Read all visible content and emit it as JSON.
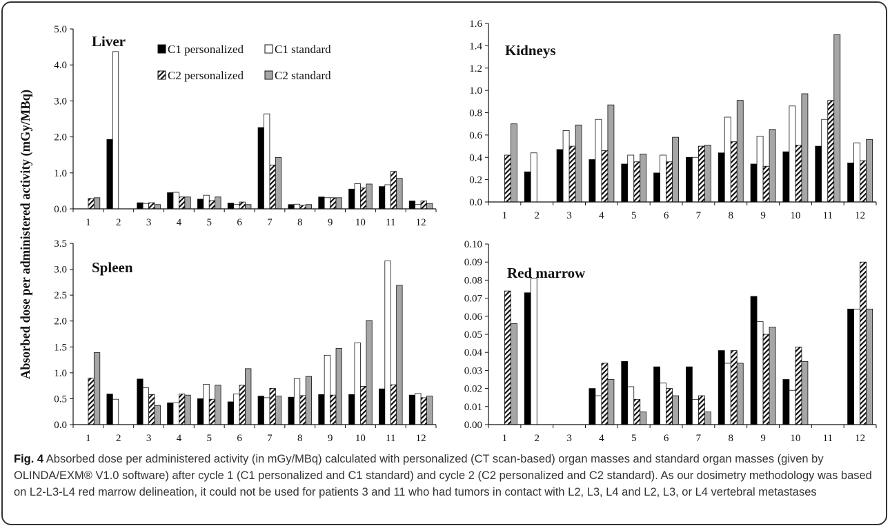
{
  "ylabel": "Absorbed dose per administered activity (mGy/MBq)",
  "legend": [
    {
      "name": "C1 personalized",
      "style": "black"
    },
    {
      "name": "C1 standard",
      "style": "white"
    },
    {
      "name": "C2 personalized",
      "style": "hatch"
    },
    {
      "name": "C2 standard",
      "style": "gray"
    }
  ],
  "colors": {
    "c1p": "#000000",
    "c1s": "#ffffff",
    "c2p_hatch": "#111111",
    "c2s": "#a6a6a6"
  },
  "caption": {
    "fig_label": "Fig. 4",
    "text": "Absorbed dose per administered activity (in mGy/MBq) calculated with personalized (CT scan-based) organ masses and standard organ masses (given by OLINDA/EXM® V1.0 software) after cycle 1 (C1 personalized and C1 standard) and cycle 2 (C2 personalized and C2 standard). As our dosimetry methodology was based on L2-L3-L4 red marrow delineation, it could not be used for patients 3 and 11 who had tumors in contact with L2, L3, L4 and L2, L3, or L4 vertebral metastases"
  },
  "chart_data": [
    {
      "type": "bar",
      "title": "Liver",
      "categories": [
        "1",
        "2",
        "3",
        "4",
        "5",
        "6",
        "7",
        "8",
        "9",
        "10",
        "11",
        "12"
      ],
      "ylim": [
        0,
        5
      ],
      "yticks": [
        "0.0",
        "1.0",
        "2.0",
        "3.0",
        "4.0",
        "5.0"
      ],
      "series": [
        {
          "name": "C1 personalized",
          "values": [
            null,
            1.93,
            0.17,
            0.45,
            0.27,
            0.16,
            2.26,
            0.12,
            0.33,
            0.55,
            0.62,
            0.22
          ]
        },
        {
          "name": "C1 standard",
          "values": [
            null,
            4.37,
            0.15,
            0.46,
            0.38,
            0.12,
            2.64,
            0.13,
            0.31,
            0.7,
            0.67,
            0.12
          ]
        },
        {
          "name": "C2 personalized",
          "values": [
            0.29,
            null,
            0.17,
            0.33,
            0.23,
            0.19,
            1.22,
            0.1,
            0.31,
            0.58,
            1.04,
            0.22
          ]
        },
        {
          "name": "C2 standard",
          "values": [
            0.31,
            null,
            0.12,
            0.33,
            0.33,
            0.12,
            1.43,
            0.12,
            0.31,
            0.69,
            0.85,
            0.15
          ]
        }
      ]
    },
    {
      "type": "bar",
      "title": "Kidneys",
      "categories": [
        "1",
        "2",
        "3",
        "4",
        "5",
        "6",
        "7",
        "8",
        "9",
        "10",
        "11",
        "12"
      ],
      "ylim": [
        0,
        1.6
      ],
      "yticks": [
        "0.0",
        "0.2",
        "0.4",
        "0.6",
        "0.8",
        "1.0",
        "1.2",
        "1.4",
        "1.6"
      ],
      "series": [
        {
          "name": "C1 personalized",
          "values": [
            null,
            0.27,
            0.47,
            0.38,
            0.34,
            0.26,
            0.4,
            0.44,
            0.34,
            0.45,
            0.5,
            0.35
          ]
        },
        {
          "name": "C1 standard",
          "values": [
            null,
            0.44,
            0.64,
            0.74,
            0.42,
            0.42,
            0.4,
            0.76,
            0.59,
            0.86,
            0.74,
            0.53
          ]
        },
        {
          "name": "C2 personalized",
          "values": [
            0.42,
            null,
            0.5,
            0.46,
            0.36,
            0.36,
            0.5,
            0.54,
            0.32,
            0.51,
            0.91,
            0.37
          ]
        },
        {
          "name": "C2 standard",
          "values": [
            0.7,
            null,
            0.69,
            0.87,
            0.43,
            0.58,
            0.51,
            0.91,
            0.65,
            0.97,
            1.5,
            0.56
          ]
        }
      ]
    },
    {
      "type": "bar",
      "title": "Spleen",
      "categories": [
        "1",
        "2",
        "3",
        "4",
        "5",
        "6",
        "7",
        "8",
        "9",
        "10",
        "11",
        "12"
      ],
      "ylim": [
        0,
        3.5
      ],
      "yticks": [
        "0.0",
        "0.5",
        "1.0",
        "1.5",
        "2.0",
        "2.5",
        "3.0",
        "3.5"
      ],
      "series": [
        {
          "name": "C1 personalized",
          "values": [
            null,
            0.59,
            0.88,
            0.42,
            0.5,
            0.44,
            0.55,
            0.53,
            0.58,
            0.58,
            0.69,
            0.57
          ]
        },
        {
          "name": "C1 standard",
          "values": [
            null,
            0.49,
            0.71,
            0.42,
            0.78,
            0.59,
            0.52,
            0.89,
            1.34,
            1.58,
            3.16,
            0.6
          ]
        },
        {
          "name": "C2 personalized",
          "values": [
            0.9,
            null,
            0.58,
            0.59,
            0.49,
            0.76,
            0.7,
            0.56,
            0.57,
            0.74,
            0.77,
            0.52
          ]
        },
        {
          "name": "C2 standard",
          "values": [
            1.39,
            null,
            0.37,
            0.57,
            0.76,
            1.08,
            0.55,
            0.93,
            1.47,
            2.01,
            2.69,
            0.55
          ]
        }
      ]
    },
    {
      "type": "bar",
      "title": "Red marrow",
      "categories": [
        "1",
        "2",
        "3",
        "4",
        "5",
        "6",
        "7",
        "8",
        "9",
        "10",
        "11",
        "12"
      ],
      "ylim": [
        0,
        0.1
      ],
      "yticks": [
        "0.00",
        "0.01",
        "0.02",
        "0.03",
        "0.04",
        "0.05",
        "0.06",
        "0.07",
        "0.08",
        "0.09",
        "0.10"
      ],
      "series": [
        {
          "name": "C1 personalized",
          "values": [
            null,
            0.073,
            null,
            0.02,
            0.035,
            0.032,
            0.032,
            0.041,
            0.071,
            0.025,
            null,
            0.064
          ]
        },
        {
          "name": "C1 standard",
          "values": [
            null,
            0.081,
            null,
            0.016,
            0.021,
            0.023,
            0.014,
            0.034,
            0.057,
            0.019,
            null,
            0.064
          ]
        },
        {
          "name": "C2 personalized",
          "values": [
            0.074,
            null,
            null,
            0.034,
            0.014,
            0.02,
            0.016,
            0.041,
            0.05,
            0.043,
            null,
            0.09
          ]
        },
        {
          "name": "C2 standard",
          "values": [
            0.056,
            null,
            null,
            0.025,
            0.007,
            0.016,
            0.007,
            0.034,
            0.054,
            0.035,
            null,
            0.064
          ]
        }
      ]
    }
  ]
}
